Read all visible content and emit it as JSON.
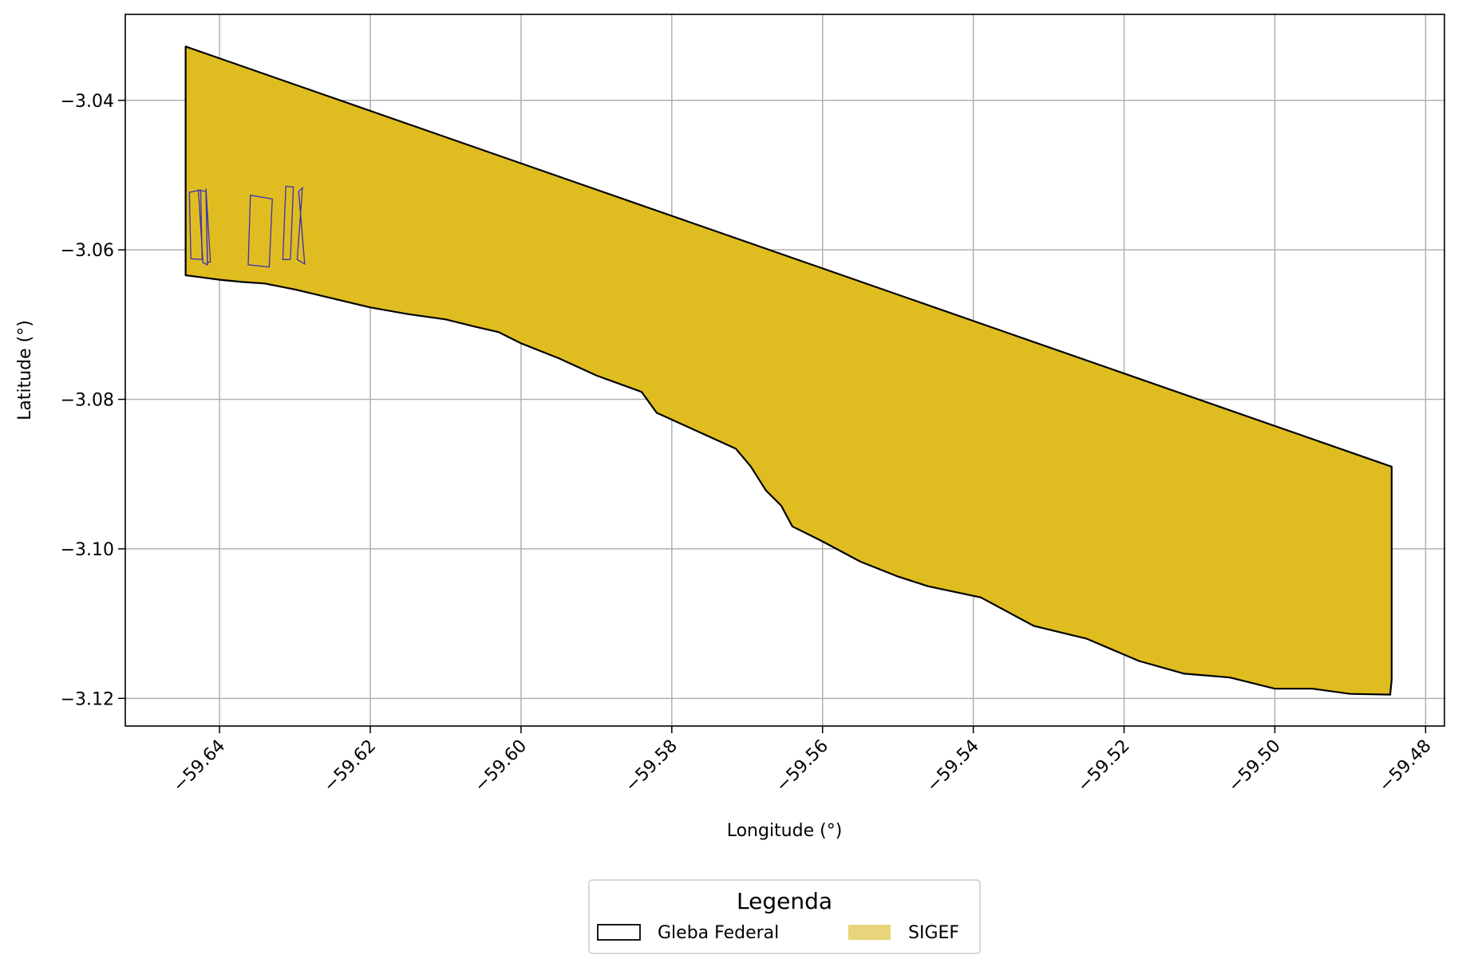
{
  "chart_data": {
    "type": "map",
    "xlabel": "Longitude (°)",
    "ylabel": "Latitude (°)",
    "xlim": [
      -59.6525,
      -59.4775
    ],
    "ylim": [
      -3.1237,
      -3.0285
    ],
    "grid": true,
    "x_ticks": [
      -59.64,
      -59.62,
      -59.6,
      -59.58,
      -59.56,
      -59.54,
      -59.52,
      -59.5,
      -59.48
    ],
    "x_tick_labels": [
      "−59.64",
      "−59.62",
      "−59.60",
      "−59.58",
      "−59.56",
      "−59.54",
      "−59.52",
      "−59.50",
      "−59.48"
    ],
    "y_ticks": [
      -3.04,
      -3.06,
      -3.08,
      -3.1,
      -3.12
    ],
    "y_tick_labels": [
      "−3.04",
      "−3.06",
      "−3.08",
      "−3.10",
      "−3.12"
    ],
    "colors": {
      "gleba_fill": "#dfbd21",
      "gleba_edge": "#000000",
      "sigef_legend": "#e8d47a",
      "parcel_edge": "#3a2fb3",
      "grid": "#b0b0b0"
    },
    "legend": {
      "title": "Legenda",
      "placement": "bottom-center",
      "entries": [
        {
          "label": "Gleba Federal",
          "style": "outline"
        },
        {
          "label": "SIGEF",
          "style": "fill"
        }
      ]
    },
    "polygons": {
      "gleba_federal": [
        [
          -59.6445,
          -3.0328
        ],
        [
          -59.4845,
          -3.089
        ],
        [
          -59.4845,
          -3.1175
        ],
        [
          -59.4847,
          -3.1195
        ],
        [
          -59.49,
          -3.1194
        ],
        [
          -59.495,
          -3.1187
        ],
        [
          -59.5,
          -3.1187
        ],
        [
          -59.506,
          -3.1172
        ],
        [
          -59.512,
          -3.1167
        ],
        [
          -59.518,
          -3.115
        ],
        [
          -59.525,
          -3.112
        ],
        [
          -59.532,
          -3.1103
        ],
        [
          -59.539,
          -3.1065
        ],
        [
          -59.546,
          -3.105
        ],
        [
          -59.55,
          -3.1037
        ],
        [
          -59.555,
          -3.1017
        ],
        [
          -59.56,
          -3.099
        ],
        [
          -59.564,
          -3.097
        ],
        [
          -59.5655,
          -3.0942
        ],
        [
          -59.5675,
          -3.0922
        ],
        [
          -59.5695,
          -3.089
        ],
        [
          -59.5715,
          -3.0866
        ],
        [
          -59.575,
          -3.085
        ],
        [
          -59.582,
          -3.0818
        ],
        [
          -59.584,
          -3.079
        ],
        [
          -59.59,
          -3.0768
        ],
        [
          -59.595,
          -3.0745
        ],
        [
          -59.6,
          -3.0725
        ],
        [
          -59.603,
          -3.071
        ],
        [
          -59.606,
          -3.0703
        ],
        [
          -59.61,
          -3.0693
        ],
        [
          -59.615,
          -3.0686
        ],
        [
          -59.62,
          -3.0677
        ],
        [
          -59.625,
          -3.0665
        ],
        [
          -59.63,
          -3.0653
        ],
        [
          -59.634,
          -3.0645
        ],
        [
          -59.637,
          -3.0643
        ],
        [
          -59.64,
          -3.064
        ],
        [
          -59.6445,
          -3.0634
        ]
      ],
      "sigef_parcels": [
        [
          [
            -59.644,
            -3.0523
          ],
          [
            -59.6425,
            -3.052
          ],
          [
            -59.6423,
            -3.0613
          ],
          [
            -59.6438,
            -3.0612
          ]
        ],
        [
          [
            -59.6428,
            -3.052
          ],
          [
            -59.6418,
            -3.0522
          ],
          [
            -59.6416,
            -3.062
          ],
          [
            -59.6422,
            -3.0617
          ]
        ],
        [
          [
            -59.6418,
            -3.0518
          ],
          [
            -59.6416,
            -3.0617
          ],
          [
            -59.6412,
            -3.0616
          ]
        ],
        [
          [
            -59.6359,
            -3.0527
          ],
          [
            -59.633,
            -3.0532
          ],
          [
            -59.6334,
            -3.0623
          ],
          [
            -59.6362,
            -3.062
          ]
        ],
        [
          [
            -59.6312,
            -3.0515
          ],
          [
            -59.6302,
            -3.0516
          ],
          [
            -59.6306,
            -3.0613
          ],
          [
            -59.6316,
            -3.0613
          ]
        ],
        [
          [
            -59.629,
            -3.0517
          ],
          [
            -59.6295,
            -3.0522
          ],
          [
            -59.6287,
            -3.0619
          ],
          [
            -59.6297,
            -3.0613
          ]
        ]
      ]
    }
  }
}
